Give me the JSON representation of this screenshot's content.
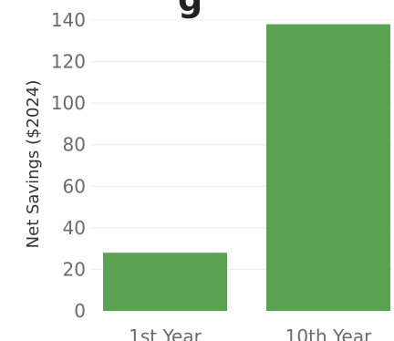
{
  "chart_data": {
    "type": "bar",
    "title_fragment": "g",
    "ylabel": "Net Savings ($2024)",
    "categories": [
      "1st Year",
      "10th Year"
    ],
    "values": [
      28,
      138
    ],
    "ylim": [
      0,
      140
    ],
    "yticks": [
      0,
      20,
      40,
      60,
      80,
      100,
      120,
      140
    ],
    "grid": true,
    "bar_color": "#5aa352"
  }
}
